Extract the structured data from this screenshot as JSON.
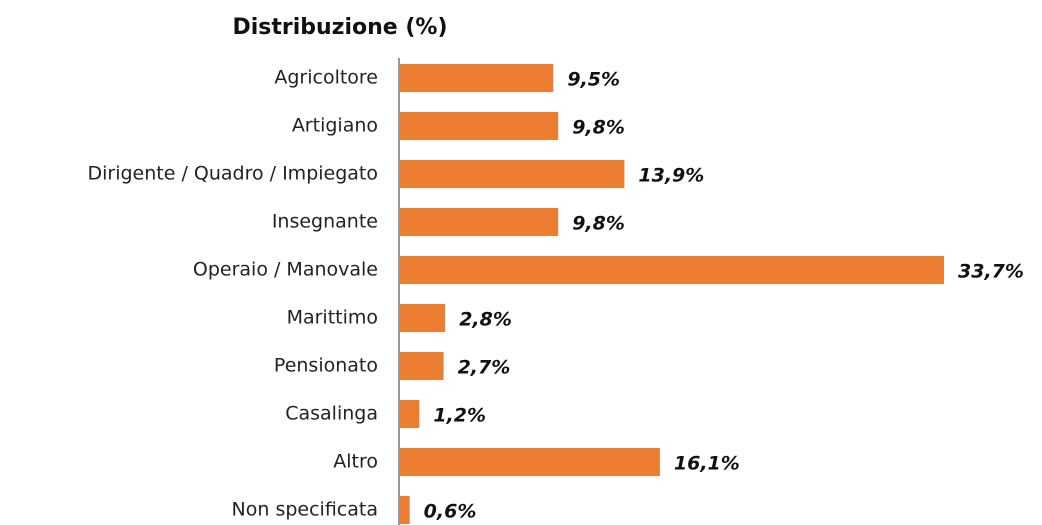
{
  "chart_data": {
    "type": "bar",
    "orientation": "horizontal",
    "title": "Distribuzione (%)",
    "categories": [
      "Agricoltore",
      "Artigiano",
      "Dirigente / Quadro / Impiegato",
      "Insegnante",
      "Operaio / Manovale",
      "Marittimo",
      "Pensionato",
      "Casalinga",
      "Altro",
      "Non specificata"
    ],
    "values": [
      9.5,
      9.8,
      13.9,
      9.8,
      33.7,
      2.8,
      2.7,
      1.2,
      16.1,
      0.6
    ],
    "value_labels": [
      "9,5%",
      "9,8%",
      "13,9%",
      "9,8%",
      "33,7%",
      "2,8%",
      "2,7%",
      "1,2%",
      "16,1%",
      "0,6%"
    ],
    "color": "#ED7D31"
  }
}
